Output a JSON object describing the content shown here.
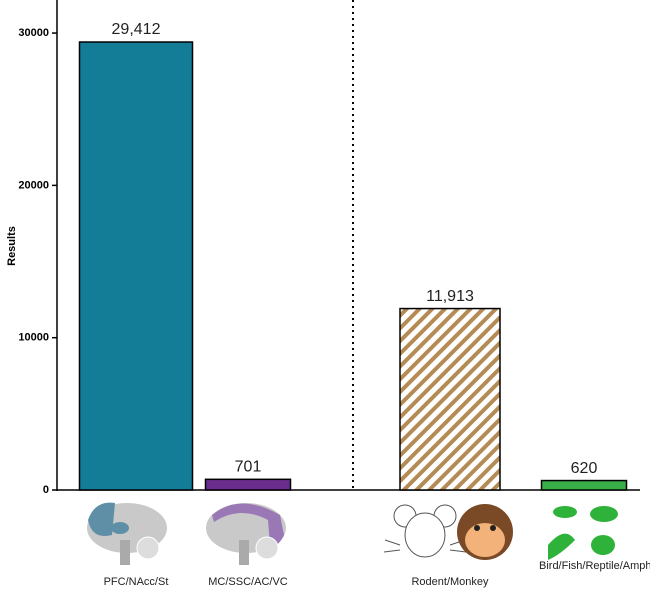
{
  "chart_data": {
    "type": "bar",
    "y_label": "Results",
    "categories": [
      "PFC/NAcc/St",
      "MC/SSC/AC/VC",
      "Rodent/Monkey",
      "Bird/Fish/Reptile/Amphibian"
    ],
    "values": [
      29412,
      701,
      11913,
      620
    ],
    "value_labels": [
      "29,412",
      "701",
      "11,913",
      "620"
    ],
    "colors": [
      "#137c97",
      "#6b2d8c",
      "#b58b55",
      "#3aae48"
    ],
    "hatch": [
      false,
      false,
      true,
      false
    ],
    "ylim": [
      0,
      32000
    ],
    "yticks": [
      0,
      10000,
      20000,
      30000
    ],
    "grid": false
  }
}
